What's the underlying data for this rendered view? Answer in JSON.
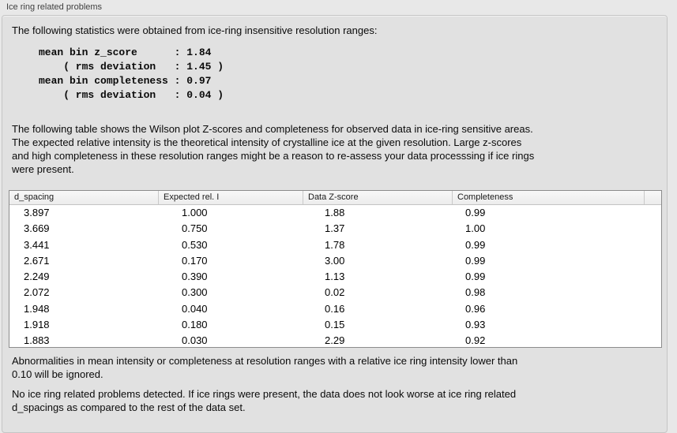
{
  "window": {
    "title": "Ice ring related problems"
  },
  "panel": {
    "intro": "The following statistics were obtained from ice-ring insensitive resolution ranges:",
    "stats_block": "mean bin z_score      : 1.84\n    ( rms deviation   : 1.45 )\nmean bin completeness : 0.97\n    ( rms deviation   : 0.04 )",
    "statistics": {
      "mean_bin_z_score": "1.84",
      "z_score_rms_deviation": "1.45",
      "mean_bin_completeness": "0.97",
      "completeness_rms_deviation": "0.04"
    },
    "table_description": "The following table shows the Wilson plot Z-scores and completeness for observed data in ice-ring sensitive areas.\nThe expected relative intensity is the theoretical intensity of crystalline ice at the given resolution. Large z-scores\nand high completeness in these resolution ranges might be a reason to re-assess your data processsing if ice rings\nwere present.",
    "ignore_note": "Abnormalities in mean intensity or completeness at resolution ranges with a relative ice ring intensity lower than\n0.10 will be ignored.",
    "conclusion": "No ice ring related problems detected. If ice rings were present, the data does not look worse at ice ring related\nd_spacings as compared to the rest of the data set."
  },
  "table": {
    "headers": [
      "d_spacing",
      "Expected rel. I",
      "Data Z-score",
      "Completeness"
    ],
    "rows": [
      [
        "3.897",
        "1.000",
        "1.88",
        "0.99"
      ],
      [
        "3.669",
        "0.750",
        "1.37",
        "1.00"
      ],
      [
        "3.441",
        "0.530",
        "1.78",
        "0.99"
      ],
      [
        "2.671",
        "0.170",
        "3.00",
        "0.99"
      ],
      [
        "2.249",
        "0.390",
        "1.13",
        "0.99"
      ],
      [
        "2.072",
        "0.300",
        "0.02",
        "0.98"
      ],
      [
        "1.948",
        "0.040",
        "0.16",
        "0.96"
      ],
      [
        "1.918",
        "0.180",
        "0.15",
        "0.93"
      ],
      [
        "1.883",
        "0.030",
        "2.29",
        "0.92"
      ]
    ]
  },
  "colors": {
    "page_background": "#e8e8e8",
    "panel_background": "#e1e1e1",
    "panel_border": "#c5c5c5",
    "table_background": "#ffffff",
    "table_border": "#8c8c8c",
    "header_background": "#f2f2f2",
    "text": "#0a0a0a"
  }
}
